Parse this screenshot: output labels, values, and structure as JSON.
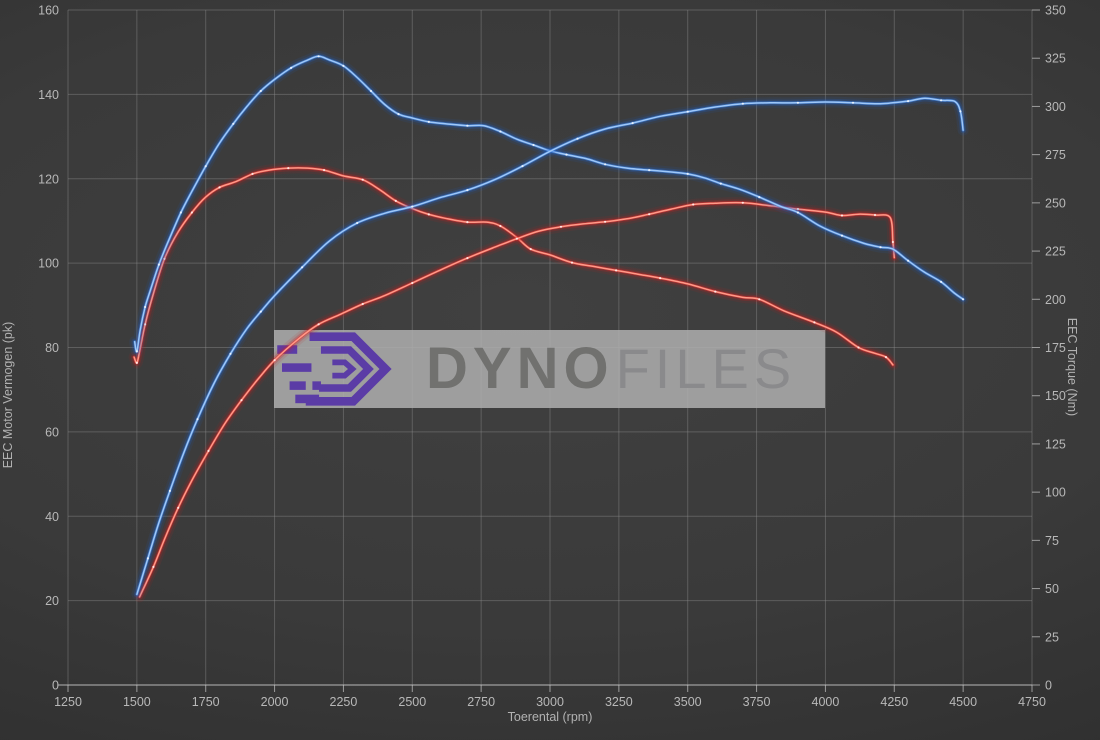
{
  "chart_data": {
    "type": "line",
    "xlabel": "Toerental (rpm)",
    "ylabel_left": "EEC Motor Vermogen (pk)",
    "ylabel_right": "EEC Torque (Nm)",
    "xlim": [
      1250,
      4750
    ],
    "left_lim": [
      0,
      160
    ],
    "right_lim": [
      0,
      350
    ],
    "x_ticks": [
      1250,
      1500,
      1750,
      2000,
      2250,
      2500,
      2750,
      3000,
      3250,
      3500,
      3750,
      4000,
      4250,
      4500,
      4750
    ],
    "left_ticks": [
      0,
      20,
      40,
      60,
      80,
      100,
      120,
      140,
      160
    ],
    "right_ticks": [
      0,
      25,
      50,
      75,
      100,
      125,
      150,
      175,
      200,
      225,
      250,
      275,
      300,
      325,
      350
    ],
    "grid": "on",
    "legend": "none",
    "series": [
      {
        "name": "torque-stock-red",
        "axis": "right",
        "unit": "Nm",
        "color": "#e53030",
        "points": [
          [
            1490,
            170
          ],
          [
            1500,
            167
          ],
          [
            1510,
            173
          ],
          [
            1530,
            187
          ],
          [
            1560,
            203
          ],
          [
            1600,
            221
          ],
          [
            1650,
            235
          ],
          [
            1700,
            245
          ],
          [
            1750,
            253
          ],
          [
            1800,
            258
          ],
          [
            1860,
            261
          ],
          [
            1920,
            265
          ],
          [
            1980,
            267
          ],
          [
            2050,
            268
          ],
          [
            2120,
            268
          ],
          [
            2180,
            267
          ],
          [
            2250,
            264
          ],
          [
            2320,
            262
          ],
          [
            2380,
            257
          ],
          [
            2440,
            251
          ],
          [
            2500,
            247
          ],
          [
            2560,
            244
          ],
          [
            2620,
            242
          ],
          [
            2700,
            240
          ],
          [
            2770,
            240
          ],
          [
            2820,
            238
          ],
          [
            2880,
            232
          ],
          [
            2930,
            226
          ],
          [
            3000,
            223
          ],
          [
            3080,
            219
          ],
          [
            3160,
            217
          ],
          [
            3240,
            215
          ],
          [
            3320,
            213
          ],
          [
            3400,
            211
          ],
          [
            3500,
            208
          ],
          [
            3600,
            204
          ],
          [
            3700,
            201
          ],
          [
            3760,
            200
          ],
          [
            3850,
            194
          ],
          [
            3960,
            188
          ],
          [
            4040,
            183
          ],
          [
            4120,
            175
          ],
          [
            4180,
            172
          ],
          [
            4220,
            170
          ],
          [
            4245,
            166
          ]
        ]
      },
      {
        "name": "power-stock-red",
        "axis": "left",
        "unit": "pk",
        "color": "#e53030",
        "points": [
          [
            1510,
            20.9
          ],
          [
            1560,
            28
          ],
          [
            1600,
            34.5
          ],
          [
            1650,
            42
          ],
          [
            1700,
            48.5
          ],
          [
            1760,
            55.5
          ],
          [
            1820,
            62
          ],
          [
            1880,
            67.5
          ],
          [
            1940,
            72.5
          ],
          [
            2000,
            77
          ],
          [
            2090,
            82.2
          ],
          [
            2160,
            85.5
          ],
          [
            2240,
            87.9
          ],
          [
            2320,
            90.3
          ],
          [
            2400,
            92.3
          ],
          [
            2500,
            95.3
          ],
          [
            2600,
            98.3
          ],
          [
            2700,
            101.2
          ],
          [
            2800,
            103.8
          ],
          [
            2880,
            105.8
          ],
          [
            2960,
            107.6
          ],
          [
            3040,
            108.6
          ],
          [
            3120,
            109.3
          ],
          [
            3200,
            109.8
          ],
          [
            3280,
            110.5
          ],
          [
            3360,
            111.6
          ],
          [
            3440,
            112.8
          ],
          [
            3520,
            113.9
          ],
          [
            3600,
            114.2
          ],
          [
            3700,
            114.3
          ],
          [
            3800,
            113.6
          ],
          [
            3900,
            112.8
          ],
          [
            4000,
            112.1
          ],
          [
            4060,
            111.3
          ],
          [
            4120,
            111.6
          ],
          [
            4180,
            111.4
          ],
          [
            4235,
            110.8
          ],
          [
            4245,
            105
          ],
          [
            4250,
            101.3
          ]
        ]
      },
      {
        "name": "torque-tuned-blue",
        "axis": "right",
        "unit": "Nm",
        "color": "#3b82e6",
        "points": [
          [
            1492,
            178
          ],
          [
            1500,
            173
          ],
          [
            1512,
            184
          ],
          [
            1530,
            196
          ],
          [
            1550,
            205
          ],
          [
            1580,
            218
          ],
          [
            1620,
            232
          ],
          [
            1660,
            245
          ],
          [
            1700,
            256
          ],
          [
            1750,
            269
          ],
          [
            1800,
            281
          ],
          [
            1850,
            291
          ],
          [
            1900,
            300
          ],
          [
            1950,
            308
          ],
          [
            2000,
            314
          ],
          [
            2060,
            320
          ],
          [
            2120,
            324
          ],
          [
            2160,
            326
          ],
          [
            2200,
            324
          ],
          [
            2250,
            321
          ],
          [
            2300,
            315
          ],
          [
            2350,
            308
          ],
          [
            2400,
            301
          ],
          [
            2450,
            296
          ],
          [
            2500,
            294
          ],
          [
            2560,
            292
          ],
          [
            2620,
            291
          ],
          [
            2700,
            290
          ],
          [
            2760,
            290
          ],
          [
            2820,
            287
          ],
          [
            2880,
            283
          ],
          [
            2940,
            280
          ],
          [
            3000,
            277
          ],
          [
            3060,
            275
          ],
          [
            3130,
            273
          ],
          [
            3200,
            270
          ],
          [
            3280,
            268
          ],
          [
            3360,
            267
          ],
          [
            3440,
            266
          ],
          [
            3500,
            265
          ],
          [
            3560,
            263
          ],
          [
            3620,
            260
          ],
          [
            3690,
            257
          ],
          [
            3760,
            253
          ],
          [
            3840,
            248
          ],
          [
            3900,
            245
          ],
          [
            3980,
            238
          ],
          [
            4060,
            233
          ],
          [
            4140,
            229
          ],
          [
            4200,
            227
          ],
          [
            4245,
            226
          ],
          [
            4300,
            220
          ],
          [
            4360,
            214
          ],
          [
            4420,
            209
          ],
          [
            4470,
            203
          ],
          [
            4500,
            200
          ]
        ]
      },
      {
        "name": "power-tuned-blue",
        "axis": "left",
        "unit": "pk",
        "color": "#3b82e6",
        "points": [
          [
            1500,
            21.5
          ],
          [
            1540,
            30
          ],
          [
            1580,
            38.5
          ],
          [
            1620,
            46
          ],
          [
            1670,
            55
          ],
          [
            1720,
            63
          ],
          [
            1780,
            71.5
          ],
          [
            1840,
            78.5
          ],
          [
            1900,
            84.5
          ],
          [
            1950,
            88.5
          ],
          [
            2000,
            92.3
          ],
          [
            2100,
            99
          ],
          [
            2200,
            105.3
          ],
          [
            2300,
            109.5
          ],
          [
            2400,
            111.8
          ],
          [
            2500,
            113.4
          ],
          [
            2600,
            115.5
          ],
          [
            2700,
            117.3
          ],
          [
            2800,
            119.8
          ],
          [
            2900,
            123
          ],
          [
            3000,
            126.5
          ],
          [
            3100,
            129.5
          ],
          [
            3200,
            131.8
          ],
          [
            3300,
            133.2
          ],
          [
            3400,
            134.8
          ],
          [
            3500,
            135.9
          ],
          [
            3600,
            137
          ],
          [
            3700,
            137.8
          ],
          [
            3800,
            138
          ],
          [
            3900,
            138
          ],
          [
            4000,
            138.2
          ],
          [
            4100,
            138
          ],
          [
            4200,
            137.8
          ],
          [
            4300,
            138.4
          ],
          [
            4360,
            139.1
          ],
          [
            4420,
            138.6
          ],
          [
            4470,
            138.3
          ],
          [
            4490,
            136
          ],
          [
            4500,
            131.5
          ]
        ]
      }
    ],
    "style": {
      "grid_color": "#8f8f8f",
      "axis_line_color": "#c8c8c8",
      "tick_label_color": "#b8b8b8",
      "blue_glow": "#1c5fd0",
      "blue_core": "#9fc8f8",
      "red_glow": "#cc1a1a",
      "red_core": "#ff9a88"
    }
  },
  "watermark": {
    "text_primary": "DYNO",
    "text_secondary": "FILES",
    "box_color": "rgba(172,172,172,0.88)",
    "logo_color": "#5b3ca6",
    "text_primary_color": "#71716f",
    "text_secondary_color": "#8a8a8c"
  }
}
